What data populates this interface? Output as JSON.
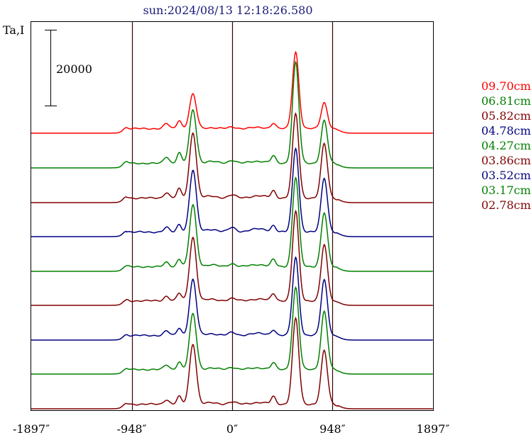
{
  "chart_data": {
    "type": "line",
    "title": "sun:2024/08/13 12:18:26.580",
    "ylabel": "Ta,I",
    "scale_bar": {
      "label": "20000",
      "value": 20000
    },
    "xlim": [
      -1897,
      1897
    ],
    "x_ticks": [
      {
        "value": -1897,
        "label": "-1897″"
      },
      {
        "value": -948,
        "label": "-948″"
      },
      {
        "value": 0,
        "label": "0″"
      },
      {
        "value": 948,
        "label": "948″"
      },
      {
        "value": 1897,
        "label": "1897″"
      }
    ],
    "vlines": [
      -948,
      0,
      948
    ],
    "grid": false,
    "legend_position": "right",
    "series": [
      {
        "name": "09.70cm",
        "color": "#ff0000",
        "amplitude": [
          0,
          0.11,
          0.02,
          0.12,
          0.1,
          0.45,
          1.0,
          0.34
        ]
      },
      {
        "name": "06.81cm",
        "color": "#008000",
        "amplitude": [
          0,
          0.14,
          0.04,
          0.22,
          0.13,
          0.7,
          1.32,
          0.56
        ]
      },
      {
        "name": "05.82cm",
        "color": "#800000",
        "amplitude": [
          0,
          0.12,
          0.04,
          0.22,
          0.13,
          0.86,
          1.1,
          0.71
        ]
      },
      {
        "name": "04.78cm",
        "color": "#000080",
        "amplitude": [
          0,
          0.1,
          0.06,
          0.17,
          0.11,
          0.81,
          1.1,
          0.71
        ]
      },
      {
        "name": "04.27cm",
        "color": "#008000",
        "amplitude": [
          0,
          0.1,
          0.04,
          0.17,
          0.13,
          0.81,
          1.17,
          0.71
        ]
      },
      {
        "name": "03.86cm",
        "color": "#800000",
        "amplitude": [
          0,
          0.1,
          0.03,
          0.18,
          0.13,
          0.83,
          1.17,
          0.73
        ]
      },
      {
        "name": "03.52cm",
        "color": "#000080",
        "amplitude": [
          0,
          0.1,
          0.04,
          0.16,
          0.1,
          0.73,
          1.02,
          0.73
        ]
      },
      {
        "name": "03.17cm",
        "color": "#008000",
        "amplitude": [
          0,
          0.1,
          0.03,
          0.17,
          0.12,
          0.73,
          1.07,
          0.76
        ]
      },
      {
        "name": "02.78cm",
        "color": "#800000",
        "amplitude": [
          0,
          0.1,
          0.03,
          0.19,
          0.14,
          0.79,
          1.12,
          0.7
        ]
      }
    ]
  }
}
